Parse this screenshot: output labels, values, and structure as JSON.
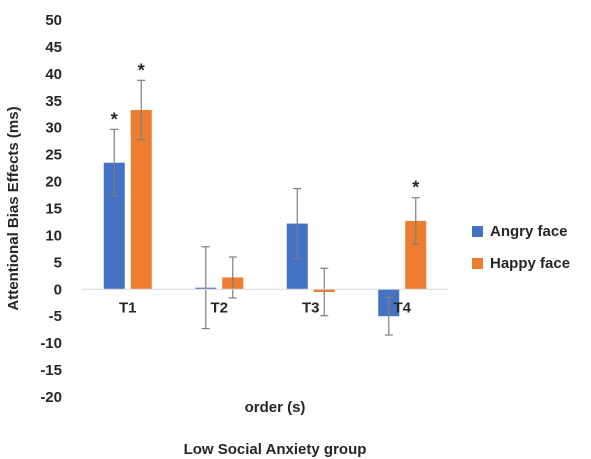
{
  "chart_data": {
    "type": "bar",
    "ylabel": "Attentional Bias Effects (ms)",
    "xlabel": "order (s)",
    "caption": "Low Social Anxiety group",
    "ylim": [
      -20,
      50
    ],
    "yticks": [
      50,
      45,
      40,
      35,
      30,
      25,
      20,
      15,
      10,
      5,
      0,
      -5,
      -10,
      -15,
      -20
    ],
    "categories": [
      "T1",
      "T2",
      "T3",
      "T4"
    ],
    "series": [
      {
        "name": "Angry face",
        "color": "#4472C4",
        "values": [
          23.5,
          0.3,
          12.2,
          -5
        ],
        "errors": [
          6.2,
          7.6,
          6.5,
          3.5
        ]
      },
      {
        "name": "Happy face",
        "color": "#ED7D31",
        "values": [
          33.3,
          2.2,
          -0.5,
          12.7
        ],
        "errors": [
          5.5,
          3.8,
          4.4,
          4.3
        ]
      }
    ],
    "significance": [
      {
        "category": "T1",
        "series": "Angry face",
        "mark": "*"
      },
      {
        "category": "T1",
        "series": "Happy face",
        "mark": "*"
      },
      {
        "category": "T4",
        "series": "Happy face",
        "mark": "*"
      }
    ],
    "legend_position": "right",
    "grid": false
  }
}
